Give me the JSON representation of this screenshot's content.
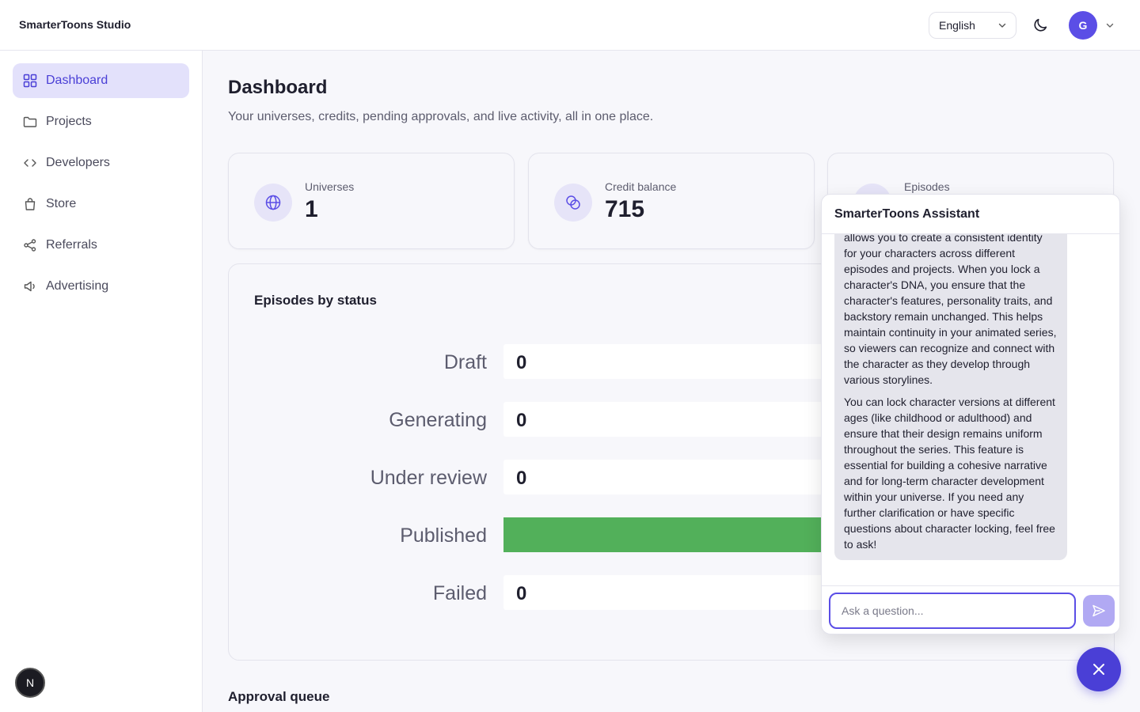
{
  "header": {
    "brand": "SmarterToons Studio",
    "language": "English",
    "avatar_initial": "G"
  },
  "sidebar": {
    "items": [
      {
        "label": "Dashboard",
        "icon": "grid-icon",
        "active": true
      },
      {
        "label": "Projects",
        "icon": "folder-icon",
        "active": false
      },
      {
        "label": "Developers",
        "icon": "code-icon",
        "active": false
      },
      {
        "label": "Store",
        "icon": "shopping-bag-icon",
        "active": false
      },
      {
        "label": "Referrals",
        "icon": "share-icon",
        "active": false
      },
      {
        "label": "Advertising",
        "icon": "megaphone-icon",
        "active": false
      }
    ],
    "badge": "N"
  },
  "main": {
    "title": "Dashboard",
    "subtitle": "Your universes, credits, pending approvals, and live activity, all in one place.",
    "stats": [
      {
        "label": "Universes",
        "value": "1",
        "icon": "globe-icon"
      },
      {
        "label": "Credit balance",
        "value": "715",
        "icon": "coins-icon"
      },
      {
        "label": "Episodes",
        "value": "",
        "icon": "film-icon"
      }
    ],
    "approval_title": "Approval queue"
  },
  "chart_data": {
    "type": "bar",
    "orientation": "horizontal",
    "title": "Episodes by status",
    "categories": [
      "Draft",
      "Generating",
      "Under review",
      "Published",
      "Failed"
    ],
    "values": [
      0,
      0,
      0,
      null,
      0
    ],
    "value_labels": [
      "0",
      "0",
      "0",
      "",
      "0"
    ],
    "colors": {
      "bar": "#52b05a",
      "track": "#ffffff"
    },
    "published_bar_visible_fraction": 1.0
  },
  "assistant": {
    "title": "SmarterToons Assistant",
    "messages": [
      "allows you to create a consistent identity for your characters across different episodes and projects. When you lock a character's DNA, you ensure that the character's features, personality traits, and backstory remain unchanged. This helps maintain continuity in your animated series, so viewers can recognize and connect with the character as they develop through various storylines.",
      "You can lock character versions at different ages (like childhood or adulthood) and ensure that their design remains uniform throughout the series. This feature is essential for building a cohesive narrative and for long-term character development within your universe. If you need any further clarification or have specific questions about character locking, feel free to ask!"
    ],
    "input_placeholder": "Ask a question..."
  },
  "colors": {
    "accent": "#5b4ee6",
    "accent_soft": "#e3e1fb",
    "success": "#52b05a"
  }
}
